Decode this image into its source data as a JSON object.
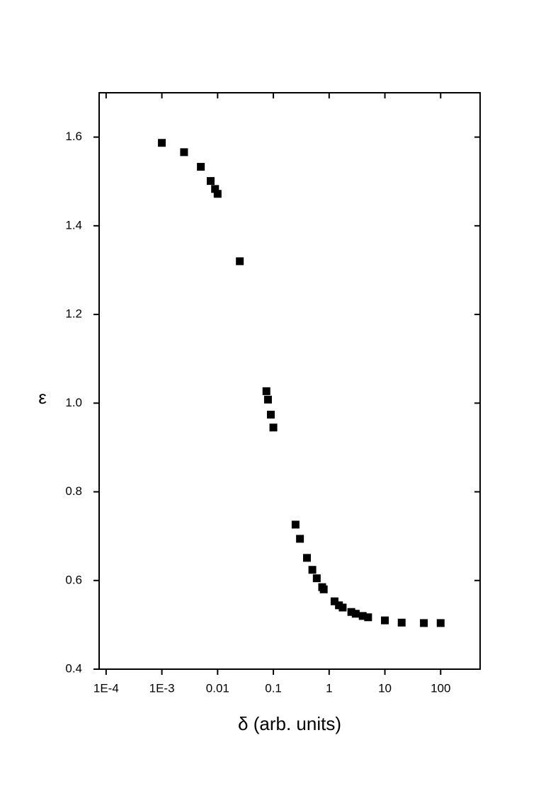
{
  "chart_data": {
    "type": "scatter",
    "x_label": "δ (arb. units)",
    "y_label": "ε",
    "xscale": "log",
    "xlim": [
      7.5e-05,
      510
    ],
    "ylim": [
      0.4,
      1.7
    ],
    "xticks": [
      {
        "value": 0.0001,
        "label": "1E-4"
      },
      {
        "value": 0.001,
        "label": "1E-3"
      },
      0.01,
      0.1,
      1,
      10,
      100
    ],
    "yticks": [
      0.4,
      0.6,
      0.8,
      {
        "value": 1,
        "label": "1.0"
      },
      1.2,
      1.4,
      1.6
    ],
    "series": [
      {
        "color": "#000000",
        "x": [
          0.001,
          0.0025,
          0.005,
          0.0075,
          0.009,
          0.01,
          0.025,
          0.075,
          0.08,
          0.09,
          0.1,
          0.25,
          0.3,
          0.4,
          0.5,
          0.6,
          0.75,
          0.8,
          1.25,
          1.5,
          1.75,
          2.5,
          3,
          4,
          5,
          10,
          20,
          50,
          100
        ],
        "values": [
          1.587,
          1.566,
          1.533,
          1.501,
          1.483,
          1.472,
          1.32,
          1.027,
          1.008,
          0.974,
          0.945,
          0.726,
          0.694,
          0.651,
          0.624,
          0.605,
          0.585,
          0.58,
          0.553,
          0.544,
          0.539,
          0.529,
          0.525,
          0.52,
          0.517,
          0.51,
          0.505,
          0.504,
          0.504
        ]
      }
    ]
  }
}
